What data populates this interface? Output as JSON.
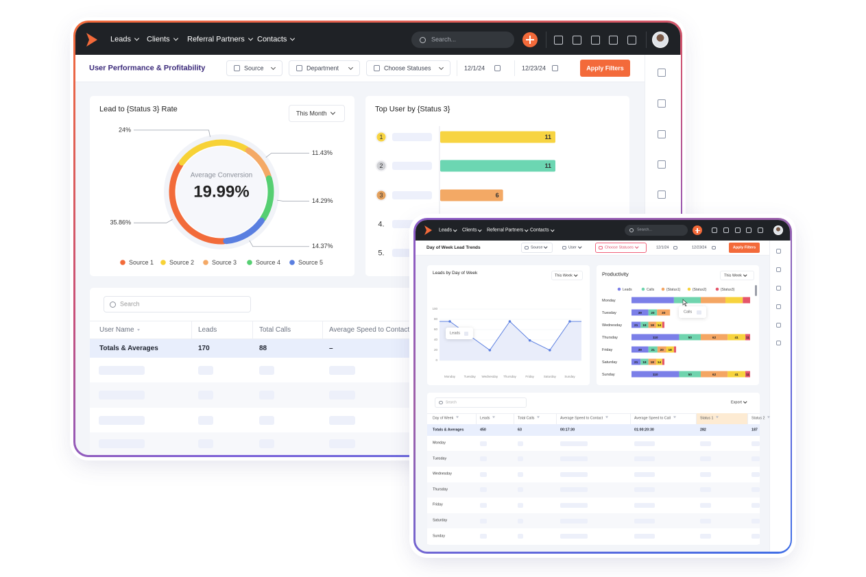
{
  "back_window": {
    "nav": {
      "items": [
        "Leads",
        "Clients",
        "Referral Partners",
        "Contacts"
      ],
      "search": "Search..."
    },
    "toolbar": {
      "title": "User Performance & Profitability",
      "filters": [
        "Source",
        "Department",
        "Choose Statuses"
      ],
      "dates": [
        "12/1/24",
        "12/23/24"
      ],
      "button": "Apply Filters"
    },
    "table": {
      "search": "Search",
      "columns": [
        "User Name",
        "Leads",
        "Total Calls",
        "Average Speed to Contact"
      ],
      "totals": [
        "Totals & Averages",
        "170",
        "88",
        "–"
      ]
    }
  },
  "front_window": {
    "nav": {
      "items": [
        "Leads",
        "Clients",
        "Referral Partners",
        "Contacts"
      ],
      "search": "Search..."
    },
    "toolbar": {
      "title": "Day of Week Lead Trends",
      "filters": [
        "Source",
        "User",
        "Choose Statuses"
      ],
      "dates": [
        "12/1/24",
        "12/23/24"
      ],
      "button": "Apply Filters"
    },
    "table": {
      "search": "Search",
      "export": "Export",
      "columns": [
        "Day of Week",
        "Leads",
        "Total Calls",
        "Average Speed to Contact",
        "Average Speed to Call",
        "Status 1",
        "Status 2"
      ],
      "totals": [
        "Totals & Averages",
        "450",
        "63",
        "00:17:30",
        "01:00:20:30",
        "282",
        "187"
      ],
      "rows": [
        "Monday",
        "Tuesday",
        "Wednesday",
        "Thursday",
        "Friday",
        "Saturday",
        "Sunday"
      ]
    }
  },
  "chart_data": [
    {
      "type": "pie",
      "title": "Lead to {Status 3} Rate",
      "period": "This Month",
      "center_label": "Average Conversion",
      "center_value": "19.99%",
      "categories": [
        "Source 1",
        "Source 2",
        "Source 3",
        "Source 4",
        "Source 5"
      ],
      "values": [
        35.86,
        24,
        11.43,
        14.29,
        14.37
      ],
      "value_labels": [
        "35.86%",
        "24%",
        "11.43%",
        "14.29%",
        "14.37%"
      ],
      "colors": [
        "#f26b3a",
        "#f7d236",
        "#f4a966",
        "#56cf72",
        "#5a7fe0"
      ]
    },
    {
      "type": "bar",
      "orientation": "horizontal",
      "title": "Top User by {Status 3}",
      "categories": [
        "1",
        "2",
        "3",
        "4.",
        "5."
      ],
      "values": [
        11,
        11,
        6,
        null,
        null
      ],
      "colors": [
        "#f7d442",
        "#6cd6b2",
        "#f3a965"
      ]
    },
    {
      "type": "line",
      "title": "Leads by Day of Week",
      "period": "This Week",
      "tooltip": "Leads",
      "categories": [
        "Monday",
        "Tuesday",
        "Wednesday",
        "Thursday",
        "Friday",
        "Saturday",
        "Sunday"
      ],
      "values": [
        76,
        48,
        20,
        76,
        39,
        20,
        76
      ],
      "color": "#5b7fe0",
      "ylim": [
        0,
        100
      ],
      "yticks": [
        0,
        20,
        40,
        60,
        80,
        100
      ],
      "grid": true
    },
    {
      "type": "stacked-bar",
      "orientation": "horizontal",
      "title": "Productivity",
      "period": "This Week",
      "tooltip": "Calls",
      "categories": [
        "Monday",
        "Tuesday",
        "Wednesday",
        "Thursday",
        "Friday",
        "Saturday",
        "Sunday"
      ],
      "series": [
        {
          "name": "Leads",
          "color": "#7b7fe8",
          "values": [
            98,
            39,
            21,
            110,
            39,
            21,
            110
          ],
          "value_labels": [
            null,
            "39",
            "21",
            "110",
            "39",
            "21",
            "110"
          ]
        },
        {
          "name": "Calls",
          "color": "#6fd4ae",
          "values": [
            62,
            20,
            18,
            50,
            21,
            18,
            50
          ],
          "value_labels": [
            null,
            "20",
            "18",
            "50",
            "21",
            "18",
            "50"
          ]
        },
        {
          "name": "{Status1}",
          "color": "#f4a663",
          "values": [
            57,
            30,
            18,
            62,
            20,
            18,
            62
          ],
          "value_labels": [
            null,
            "30",
            "18",
            "62",
            "20",
            "18",
            "62"
          ]
        },
        {
          "name": "{Status2}",
          "color": "#f7d33e",
          "values": [
            40,
            null,
            14,
            41,
            18,
            14,
            41
          ],
          "value_labels": [
            null,
            null,
            "14",
            "41",
            "18",
            "14",
            "41"
          ]
        },
        {
          "name": "{Status3}",
          "color": "#e5566b",
          "values": [
            17,
            null,
            5,
            11,
            5,
            5,
            11
          ],
          "value_labels": [
            null,
            null,
            null,
            "11",
            null,
            null,
            "11"
          ]
        }
      ]
    }
  ]
}
